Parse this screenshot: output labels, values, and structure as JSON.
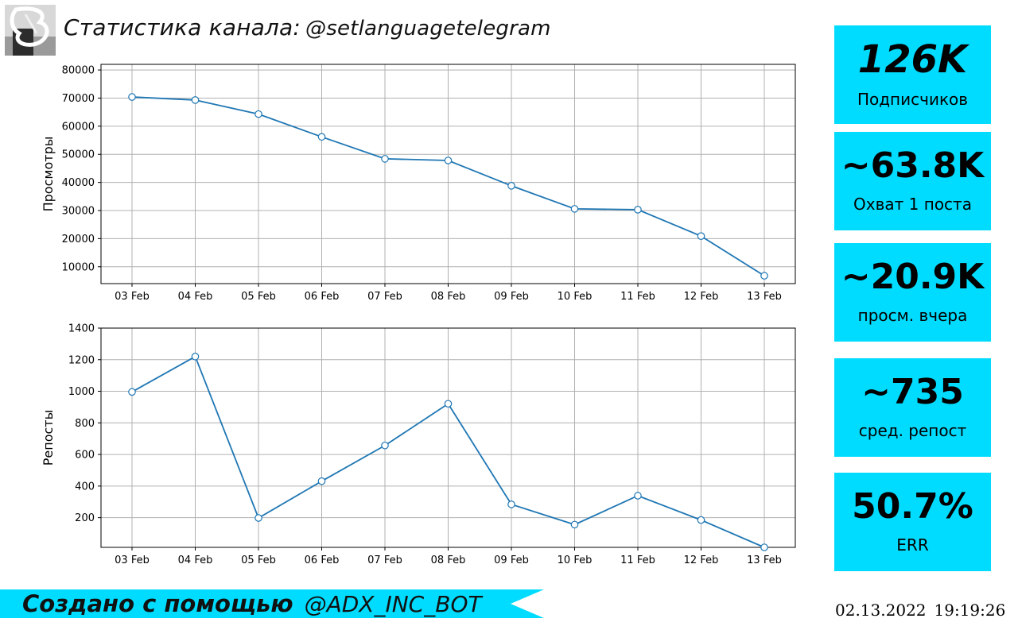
{
  "header": {
    "title": "Статистика канала:",
    "channel": "@setlanguagetelegram"
  },
  "stats": [
    {
      "value": "126K",
      "label": "Подписчиков"
    },
    {
      "value": "~63.8K",
      "label": "Охват 1 поста"
    },
    {
      "value": "~20.9K",
      "label": "просм. вчера"
    },
    {
      "value": "~735",
      "label": "сред. репост"
    },
    {
      "value": "50.7%",
      "label": "ERR"
    }
  ],
  "footer": {
    "text": "Создано с помощью",
    "bot": "@ADX_INC_BOT",
    "date": "02.13.2022",
    "time": "19:19:26"
  },
  "colors": {
    "line": "#1f77b4",
    "card": "#00dcff",
    "grid": "#b0b0b0"
  },
  "chart_data": [
    {
      "type": "line",
      "categories": [
        "03 Feb",
        "04 Feb",
        "05 Feb",
        "06 Feb",
        "07 Feb",
        "08 Feb",
        "09 Feb",
        "10 Feb",
        "11 Feb",
        "12 Feb",
        "13 Feb"
      ],
      "values": [
        70400,
        69300,
        64300,
        56200,
        48400,
        47800,
        38800,
        30600,
        30300,
        20900,
        6800
      ],
      "ylabel": "Просмотры",
      "ylim": [
        4000,
        82000
      ],
      "yticks": [
        10000,
        20000,
        30000,
        40000,
        50000,
        60000,
        70000,
        80000
      ],
      "grid": true
    },
    {
      "type": "line",
      "categories": [
        "03 Feb",
        "04 Feb",
        "05 Feb",
        "06 Feb",
        "07 Feb",
        "08 Feb",
        "09 Feb",
        "10 Feb",
        "11 Feb",
        "12 Feb",
        "13 Feb"
      ],
      "values": [
        996,
        1220,
        198,
        431,
        657,
        921,
        284,
        156,
        339,
        185,
        12
      ],
      "ylabel": "Репосты",
      "ylim": [
        12,
        1400
      ],
      "yticks": [
        200,
        400,
        600,
        800,
        1000,
        1200,
        1400
      ],
      "grid": true
    }
  ]
}
